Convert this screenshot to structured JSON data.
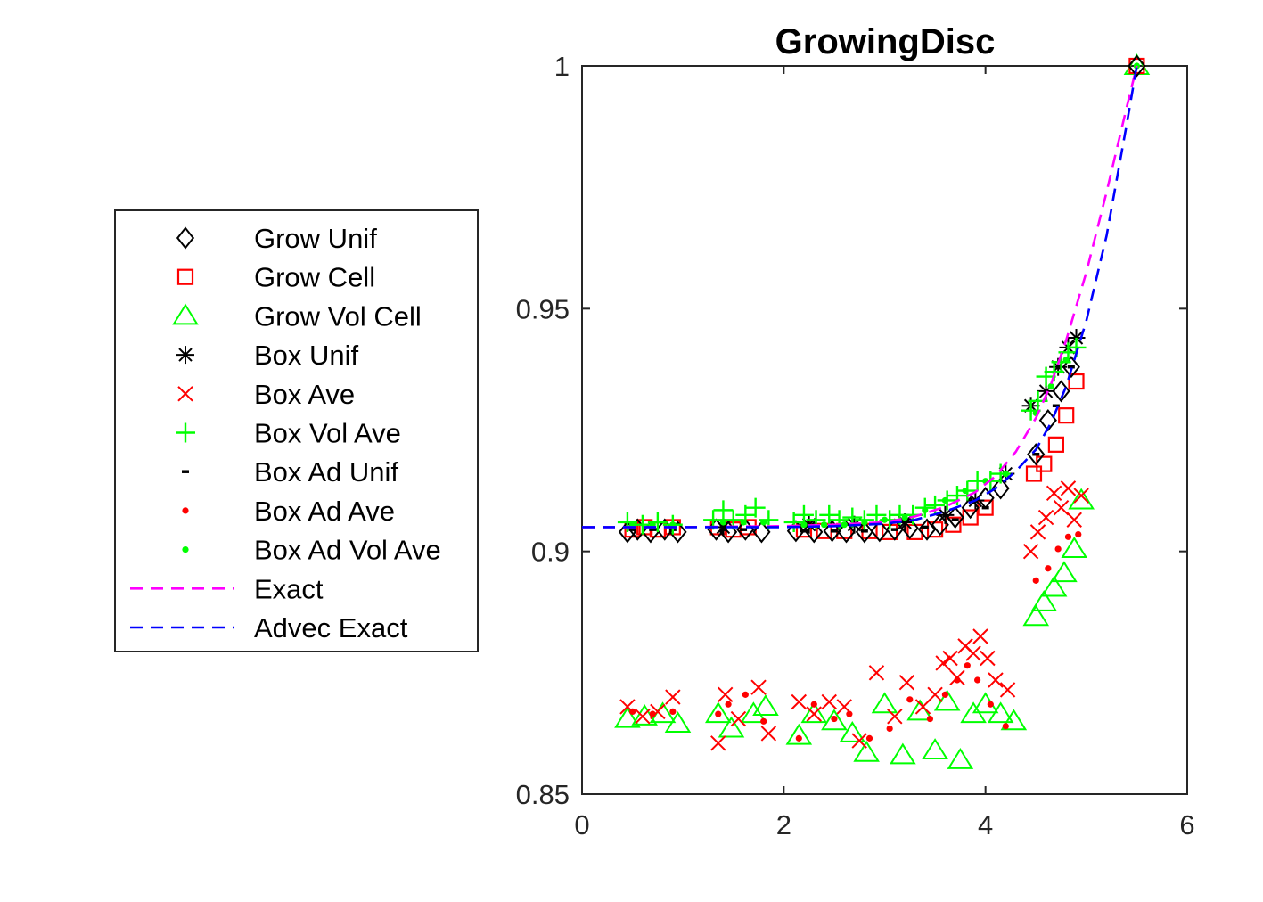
{
  "chart_data": {
    "type": "scatter",
    "title": "GrowingDisc",
    "xlabel": "",
    "ylabel": "",
    "xlim": [
      0,
      6
    ],
    "ylim": [
      0.85,
      1.0
    ],
    "x_ticks": [
      0,
      2,
      4,
      6
    ],
    "x_tick_labels": [
      "0",
      "2",
      "4",
      "6"
    ],
    "y_ticks": [
      0.85,
      0.9,
      0.95,
      1.0
    ],
    "y_tick_labels": [
      "0.85",
      "0.9",
      "0.95",
      "1"
    ],
    "grid": false,
    "legend_position": "outside-left",
    "legend": [
      {
        "label": "Grow Unif",
        "marker": "diamond",
        "color": "#000000"
      },
      {
        "label": "Grow Cell",
        "marker": "square",
        "color": "#ff0000"
      },
      {
        "label": "Grow Vol Cell",
        "marker": "triangle",
        "color": "#00ff00"
      },
      {
        "label": "Box Unif",
        "marker": "asterisk",
        "color": "#000000"
      },
      {
        "label": "Box Ave",
        "marker": "x",
        "color": "#ff0000"
      },
      {
        "label": "Box Vol Ave",
        "marker": "plus",
        "color": "#00ff00"
      },
      {
        "label": "Box Ad Unif",
        "marker": "dash",
        "color": "#000000"
      },
      {
        "label": "Box Ad Ave",
        "marker": "dot",
        "color": "#ff0000"
      },
      {
        "label": "Box Ad Vol Ave",
        "marker": "dot",
        "color": "#00ff00"
      },
      {
        "label": "Exact",
        "marker": "dashed-line",
        "color": "#ff00ff"
      },
      {
        "label": "Advec Exact",
        "marker": "dashed-line",
        "color": "#0000ff"
      }
    ],
    "series": [
      {
        "name": "Exact",
        "kind": "line",
        "color": "#ff00ff",
        "x": [
          0.0,
          1.0,
          2.0,
          2.5,
          3.0,
          3.3,
          3.6,
          3.9,
          4.1,
          4.3,
          4.5,
          4.65,
          4.8,
          5.0,
          5.2,
          5.4,
          5.5
        ],
        "y": [
          0.905,
          0.905,
          0.9052,
          0.9055,
          0.906,
          0.9072,
          0.9092,
          0.9122,
          0.9155,
          0.9205,
          0.9275,
          0.9345,
          0.9435,
          0.9575,
          0.974,
          0.9915,
          1.0
        ]
      },
      {
        "name": "Advec Exact",
        "kind": "line",
        "color": "#0000ff",
        "x": [
          0.0,
          1.0,
          2.0,
          2.5,
          3.0,
          3.3,
          3.6,
          3.9,
          4.1,
          4.3,
          4.5,
          4.65,
          4.8,
          5.0,
          5.2,
          5.4,
          5.5
        ],
        "y": [
          0.905,
          0.905,
          0.905,
          0.9052,
          0.9057,
          0.9065,
          0.9082,
          0.9105,
          0.913,
          0.9165,
          0.921,
          0.9265,
          0.934,
          0.9475,
          0.965,
          0.988,
          1.0
        ]
      },
      {
        "name": "Grow Unif",
        "kind": "markers",
        "marker": "diamond",
        "color": "#000000",
        "x": [
          0.45,
          0.55,
          0.68,
          0.82,
          0.95,
          1.33,
          1.45,
          1.62,
          1.78,
          2.12,
          2.3,
          2.48,
          2.62,
          2.8,
          2.95,
          3.1,
          3.25,
          3.42,
          3.55,
          3.7,
          3.85,
          4.0,
          4.15,
          4.5,
          4.62,
          4.75,
          4.85,
          5.5
        ],
        "y": [
          0.904,
          0.9045,
          0.904,
          0.9045,
          0.904,
          0.9045,
          0.904,
          0.9045,
          0.904,
          0.9042,
          0.904,
          0.9042,
          0.904,
          0.904,
          0.9042,
          0.9045,
          0.9048,
          0.9045,
          0.9055,
          0.907,
          0.909,
          0.911,
          0.913,
          0.92,
          0.927,
          0.933,
          0.938,
          1.0
        ]
      },
      {
        "name": "Grow Cell",
        "kind": "markers",
        "marker": "square",
        "color": "#ff0000",
        "x": [
          0.5,
          0.62,
          0.75,
          0.9,
          1.35,
          1.5,
          1.65,
          2.2,
          2.4,
          2.6,
          2.85,
          3.05,
          3.3,
          3.5,
          3.68,
          3.85,
          4.0,
          4.48,
          4.58,
          4.7,
          4.8,
          4.9,
          5.5
        ],
        "y": [
          0.9045,
          0.905,
          0.9045,
          0.905,
          0.905,
          0.9045,
          0.905,
          0.9045,
          0.9042,
          0.9042,
          0.9042,
          0.904,
          0.904,
          0.9045,
          0.9055,
          0.907,
          0.909,
          0.916,
          0.918,
          0.922,
          0.928,
          0.935,
          1.0
        ]
      },
      {
        "name": "Grow Vol Cell",
        "kind": "markers",
        "marker": "triangle",
        "color": "#00ff00",
        "x": [
          0.45,
          0.62,
          0.8,
          0.95,
          1.35,
          1.48,
          1.7,
          1.82,
          2.15,
          2.3,
          2.5,
          2.68,
          2.82,
          3.0,
          3.18,
          3.35,
          3.5,
          3.62,
          3.75,
          3.88,
          4.0,
          4.15,
          4.28,
          4.5,
          4.58,
          4.68,
          4.78,
          4.88,
          4.95,
          5.5
        ],
        "y": [
          0.8655,
          0.866,
          0.8665,
          0.8645,
          0.8665,
          0.8635,
          0.8665,
          0.868,
          0.862,
          0.8665,
          0.865,
          0.8625,
          0.8585,
          0.8685,
          0.858,
          0.867,
          0.859,
          0.869,
          0.857,
          0.8665,
          0.8685,
          0.8665,
          0.865,
          0.8865,
          0.8895,
          0.8925,
          0.8955,
          0.9005,
          0.9105,
          1.0
        ]
      },
      {
        "name": "Box Unif",
        "kind": "markers",
        "marker": "asterisk",
        "color": "#000000",
        "x": [
          1.4,
          2.25,
          2.7,
          3.2,
          3.6,
          3.9,
          4.2,
          4.45,
          4.6,
          4.72,
          4.82,
          4.9
        ],
        "y": [
          0.905,
          0.9055,
          0.9055,
          0.906,
          0.9075,
          0.9105,
          0.916,
          0.93,
          0.933,
          0.938,
          0.942,
          0.944
        ]
      },
      {
        "name": "Box Ave",
        "kind": "markers",
        "marker": "x",
        "color": "#ff0000",
        "x": [
          0.45,
          0.6,
          0.75,
          0.9,
          1.35,
          1.42,
          1.55,
          1.75,
          1.85,
          2.15,
          2.3,
          2.45,
          2.6,
          2.75,
          2.92,
          3.1,
          3.22,
          3.38,
          3.5,
          3.58,
          3.65,
          3.72,
          3.8,
          3.88,
          3.95,
          4.02,
          4.1,
          4.22,
          4.45,
          4.52,
          4.6,
          4.68,
          4.75,
          4.82,
          4.88,
          4.95
        ],
        "y": [
          0.868,
          0.866,
          0.867,
          0.87,
          0.8605,
          0.8705,
          0.8655,
          0.872,
          0.8625,
          0.869,
          0.8665,
          0.869,
          0.868,
          0.861,
          0.875,
          0.866,
          0.873,
          0.868,
          0.8705,
          0.877,
          0.878,
          0.874,
          0.8805,
          0.879,
          0.8825,
          0.878,
          0.8735,
          0.8715,
          0.9,
          0.904,
          0.907,
          0.912,
          0.909,
          0.913,
          0.9065,
          0.9115
        ]
      },
      {
        "name": "Box Vol Ave",
        "kind": "markers",
        "marker": "plus",
        "color": "#00ff00",
        "x": [
          0.45,
          0.6,
          0.75,
          0.9,
          1.3,
          1.4,
          1.5,
          1.62,
          1.72,
          1.85,
          2.1,
          2.2,
          2.32,
          2.45,
          2.55,
          2.68,
          2.8,
          2.92,
          3.05,
          3.15,
          3.28,
          3.4,
          3.5,
          3.62,
          3.72,
          3.82,
          3.92,
          4.05,
          4.15,
          4.45,
          4.52,
          4.6,
          4.68,
          4.75,
          4.82,
          4.9
        ],
        "y": [
          0.906,
          0.9055,
          0.906,
          0.9055,
          0.9065,
          0.9085,
          0.9065,
          0.9075,
          0.909,
          0.9065,
          0.906,
          0.9075,
          0.9065,
          0.9075,
          0.9065,
          0.907,
          0.9065,
          0.9075,
          0.9065,
          0.9075,
          0.9075,
          0.909,
          0.9095,
          0.9105,
          0.9115,
          0.9125,
          0.9145,
          0.9145,
          0.916,
          0.929,
          0.931,
          0.936,
          0.937,
          0.939,
          0.941,
          0.942
        ]
      },
      {
        "name": "Box Ad Unif",
        "kind": "markers",
        "marker": "dash",
        "color": "#000000",
        "x": [
          0.5,
          0.7,
          0.9,
          1.4,
          1.6,
          2.2,
          2.5,
          2.8,
          3.1,
          3.4,
          3.7,
          4.0,
          4.5,
          4.7,
          4.85
        ],
        "y": [
          0.9045,
          0.9045,
          0.9045,
          0.9045,
          0.9045,
          0.9042,
          0.9042,
          0.9042,
          0.9045,
          0.905,
          0.9065,
          0.909,
          0.92,
          0.93,
          0.938
        ]
      },
      {
        "name": "Box Ad Ave",
        "kind": "markers",
        "marker": "dot",
        "color": "#ff0000",
        "x": [
          0.5,
          0.7,
          0.9,
          1.35,
          1.45,
          1.62,
          1.8,
          2.15,
          2.3,
          2.5,
          2.65,
          2.85,
          3.05,
          3.25,
          3.45,
          3.6,
          3.72,
          3.82,
          3.92,
          4.05,
          4.2,
          4.5,
          4.62,
          4.72,
          4.82,
          4.92
        ],
        "y": [
          0.867,
          0.8665,
          0.867,
          0.8665,
          0.8685,
          0.8705,
          0.865,
          0.8615,
          0.8685,
          0.8655,
          0.8665,
          0.8615,
          0.8635,
          0.8695,
          0.8655,
          0.8705,
          0.8735,
          0.8765,
          0.8735,
          0.8685,
          0.864,
          0.894,
          0.8965,
          0.9005,
          0.903,
          0.9035
        ]
      },
      {
        "name": "Box Ad Vol Ave",
        "kind": "markers",
        "marker": "dot",
        "color": "#00ff00",
        "x": [
          0.5,
          0.7,
          0.9,
          1.4,
          1.6,
          1.8,
          2.2,
          2.4,
          2.6,
          2.8,
          3.0,
          3.2,
          3.4,
          3.6,
          3.8,
          4.0,
          4.2,
          4.5,
          4.65,
          4.8,
          5.5
        ],
        "y": [
          0.9055,
          0.9055,
          0.9055,
          0.906,
          0.906,
          0.906,
          0.9055,
          0.9055,
          0.9055,
          0.906,
          0.9065,
          0.907,
          0.9085,
          0.9105,
          0.9125,
          0.9145,
          0.916,
          0.9285,
          0.934,
          0.9395,
          1.0
        ]
      }
    ]
  }
}
